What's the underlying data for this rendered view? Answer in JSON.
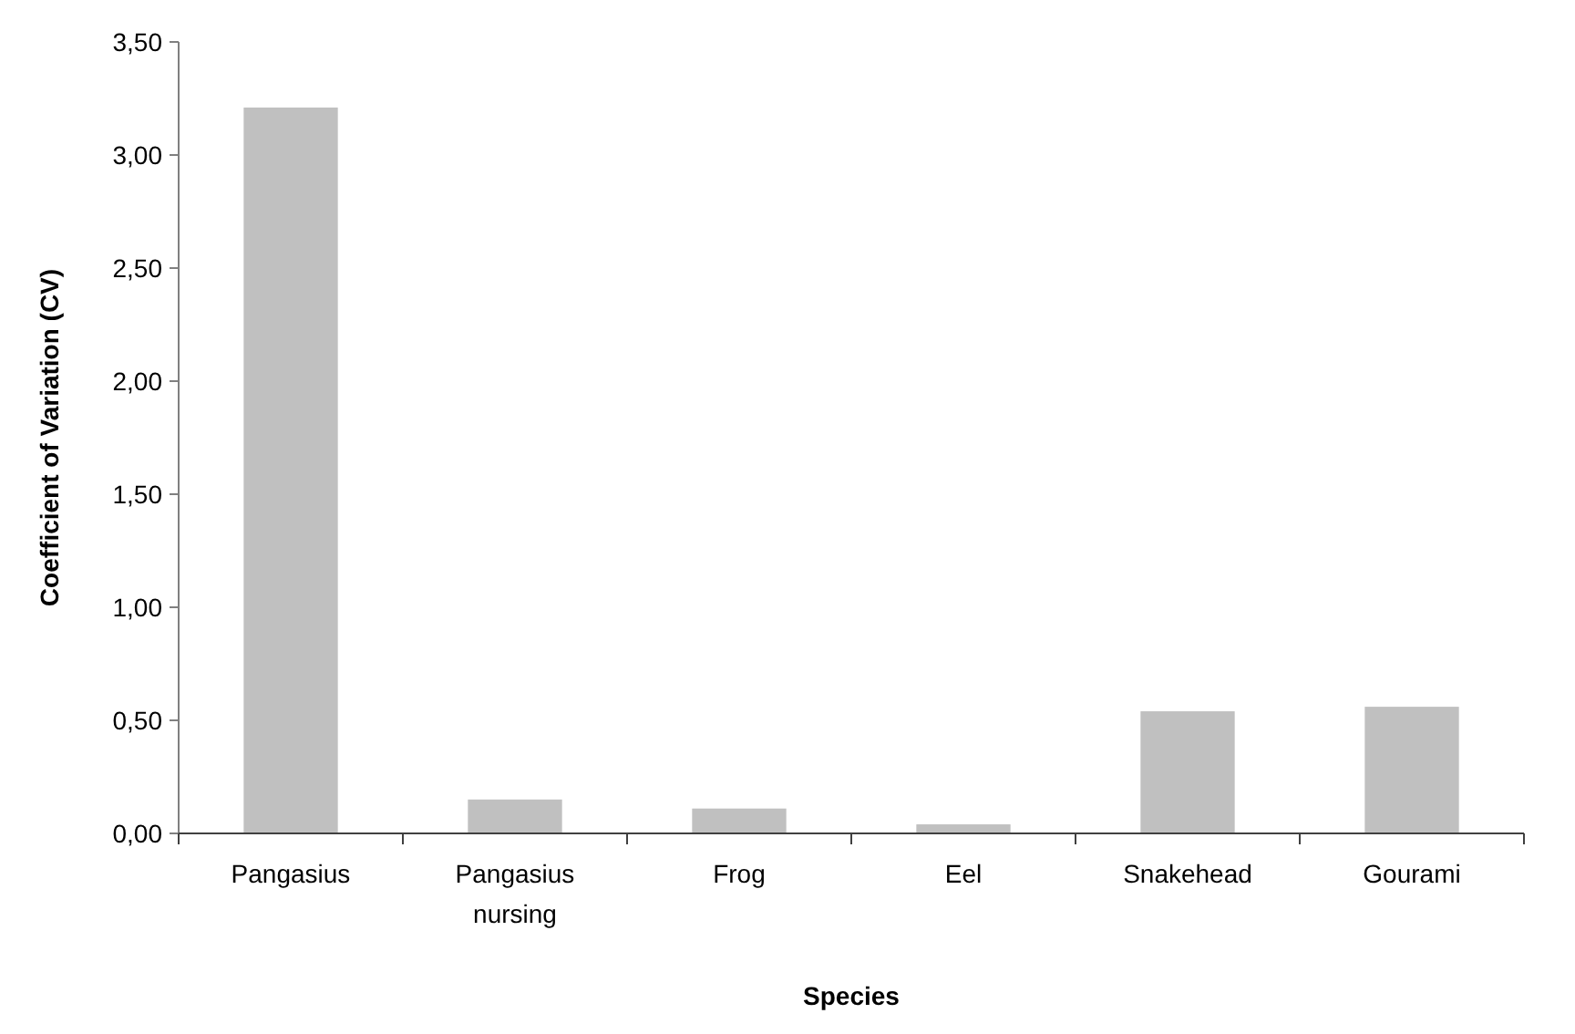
{
  "chart_data": {
    "type": "bar",
    "xlabel": "Species",
    "ylabel": "Coefficient of Variation (CV)",
    "categories": [
      "Pangasius",
      "Pangasius nursing",
      "Frog",
      "Eel",
      "Snakehead",
      "Gourami"
    ],
    "values": [
      3.21,
      0.15,
      0.11,
      0.04,
      0.54,
      0.56
    ],
    "color": "#c0c0c0",
    "ylim": [
      0,
      3.5
    ],
    "yticks": [
      {
        "value": 0,
        "label": "0,00"
      },
      {
        "value": 0.5,
        "label": "0,50"
      },
      {
        "value": 1,
        "label": "1,00"
      },
      {
        "value": 1.5,
        "label": "1,50"
      },
      {
        "value": 2,
        "label": "2,00"
      },
      {
        "value": 2.5,
        "label": "2,50"
      },
      {
        "value": 3,
        "label": "3,00"
      },
      {
        "value": 3.5,
        "label": "3,50"
      }
    ],
    "grid": false
  }
}
